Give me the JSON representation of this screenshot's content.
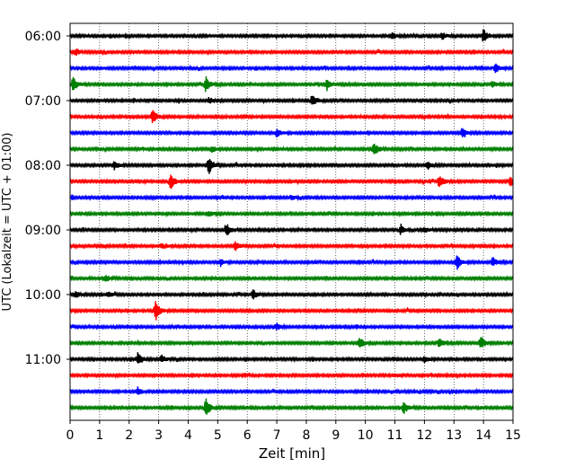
{
  "chart_data": {
    "type": "line",
    "subtype": "helicorder-seismogram",
    "xlabel": "Zeit  [min]",
    "ylabel": "UTC (Lokalzeit = UTC + 01:00)",
    "xlim": [
      0,
      15
    ],
    "x_ticks": [
      "0",
      "1",
      "2",
      "3",
      "4",
      "5",
      "6",
      "7",
      "8",
      "9",
      "10",
      "11",
      "12",
      "13",
      "14",
      "15"
    ],
    "y_tick_labels": [
      "06:00",
      "07:00",
      "08:00",
      "09:00",
      "10:00",
      "11:00"
    ],
    "grid": {
      "vertical": true,
      "style": "dotted"
    },
    "minutes_per_trace": 15,
    "trace_colors": [
      "#000000",
      "#ff0000",
      "#0000ff",
      "#008000"
    ],
    "series": [
      {
        "start": "06:00",
        "color": "#000000",
        "events": [
          {
            "t": 14.0,
            "amp": 0.9
          },
          {
            "t": 10.9,
            "amp": 0.45
          },
          {
            "t": 12.6,
            "amp": 0.45
          }
        ]
      },
      {
        "start": "06:15",
        "color": "#ff0000",
        "events": [
          {
            "t": 0.2,
            "amp": 0.45
          }
        ]
      },
      {
        "start": "06:30",
        "color": "#0000ff",
        "events": [
          {
            "t": 14.4,
            "amp": 0.5
          }
        ]
      },
      {
        "start": "06:45",
        "color": "#008000",
        "events": [
          {
            "t": 0.1,
            "amp": 1.0
          },
          {
            "t": 4.6,
            "amp": 1.0
          },
          {
            "t": 8.7,
            "amp": 0.7
          },
          {
            "t": 14.3,
            "amp": 0.4
          }
        ]
      },
      {
        "start": "07:00",
        "color": "#000000",
        "events": [
          {
            "t": 8.2,
            "amp": 0.85
          },
          {
            "t": 4.7,
            "amp": 0.4
          }
        ]
      },
      {
        "start": "07:15",
        "color": "#ff0000",
        "events": [
          {
            "t": 2.8,
            "amp": 0.85
          }
        ]
      },
      {
        "start": "07:30",
        "color": "#0000ff",
        "events": [
          {
            "t": 7.0,
            "amp": 0.5
          },
          {
            "t": 13.3,
            "amp": 0.6
          }
        ]
      },
      {
        "start": "07:45",
        "color": "#008000",
        "events": [
          {
            "t": 10.3,
            "amp": 0.85
          },
          {
            "t": 4.8,
            "amp": 0.45
          }
        ]
      },
      {
        "start": "08:00",
        "color": "#000000",
        "events": [
          {
            "t": 4.7,
            "amp": 1.1
          },
          {
            "t": 1.5,
            "amp": 0.5
          },
          {
            "t": 12.1,
            "amp": 0.55
          }
        ]
      },
      {
        "start": "08:15",
        "color": "#ff0000",
        "events": [
          {
            "t": 3.4,
            "amp": 1.0
          },
          {
            "t": 12.5,
            "amp": 0.8
          },
          {
            "t": 14.9,
            "amp": 0.6
          }
        ]
      },
      {
        "start": "08:30",
        "color": "#0000ff",
        "events": [
          {
            "t": 7.5,
            "amp": 0.3
          }
        ]
      },
      {
        "start": "08:45",
        "color": "#008000",
        "events": [
          {
            "t": 4.7,
            "amp": 0.35
          }
        ]
      },
      {
        "start": "09:00",
        "color": "#000000",
        "events": [
          {
            "t": 5.3,
            "amp": 0.75
          },
          {
            "t": 11.2,
            "amp": 0.6
          },
          {
            "t": 12.0,
            "amp": 0.35
          }
        ]
      },
      {
        "start": "09:15",
        "color": "#ff0000",
        "events": [
          {
            "t": 5.6,
            "amp": 0.6
          },
          {
            "t": 3.1,
            "amp": 0.3
          }
        ]
      },
      {
        "start": "09:30",
        "color": "#0000ff",
        "events": [
          {
            "t": 13.1,
            "amp": 0.9
          },
          {
            "t": 14.3,
            "amp": 0.6
          },
          {
            "t": 5.1,
            "amp": 0.35
          }
        ]
      },
      {
        "start": "09:45",
        "color": "#008000",
        "events": [
          {
            "t": 1.2,
            "amp": 0.45
          }
        ]
      },
      {
        "start": "10:00",
        "color": "#000000",
        "events": [
          {
            "t": 6.2,
            "amp": 0.65
          },
          {
            "t": 1.3,
            "amp": 0.35
          },
          {
            "t": 0.2,
            "amp": 0.35
          }
        ]
      },
      {
        "start": "10:15",
        "color": "#ff0000",
        "events": [
          {
            "t": 2.9,
            "amp": 1.25
          }
        ]
      },
      {
        "start": "10:30",
        "color": "#0000ff",
        "events": [
          {
            "t": 7.0,
            "amp": 0.45
          }
        ]
      },
      {
        "start": "10:45",
        "color": "#008000",
        "events": [
          {
            "t": 9.8,
            "amp": 0.8
          },
          {
            "t": 13.9,
            "amp": 0.9
          },
          {
            "t": 12.5,
            "amp": 0.55
          }
        ]
      },
      {
        "start": "11:00",
        "color": "#000000",
        "events": [
          {
            "t": 2.3,
            "amp": 0.85
          },
          {
            "t": 3.1,
            "amp": 0.5
          },
          {
            "t": 12.0,
            "amp": 0.4
          }
        ]
      },
      {
        "start": "11:15",
        "color": "#ff0000",
        "events": [
          {
            "t": 11.0,
            "amp": 0.25
          }
        ]
      },
      {
        "start": "11:30",
        "color": "#0000ff",
        "events": [
          {
            "t": 2.3,
            "amp": 0.55
          }
        ]
      },
      {
        "start": "11:45",
        "color": "#008000",
        "events": [
          {
            "t": 4.6,
            "amp": 1.2
          },
          {
            "t": 11.3,
            "amp": 0.75
          }
        ]
      }
    ]
  }
}
